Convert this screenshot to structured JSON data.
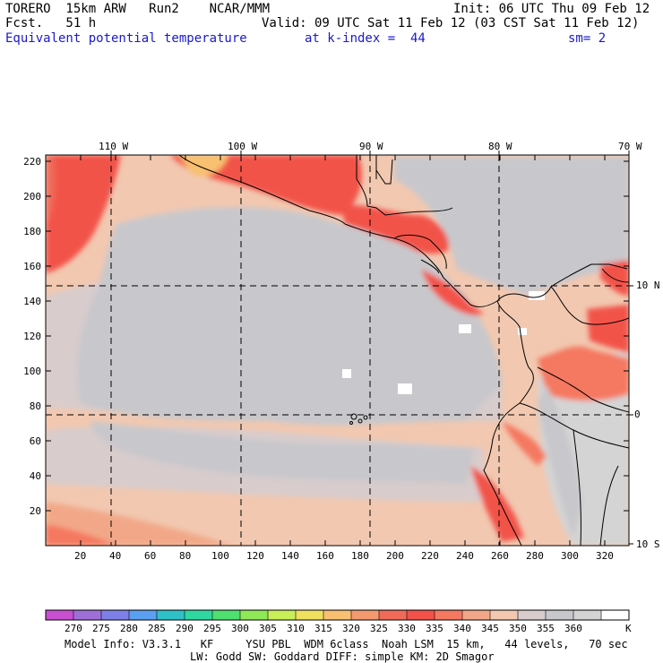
{
  "header": {
    "line1_left": "TORERO  15km ARW   Run2    NCAR/MMM",
    "line1_right": "Init: 06 UTC Thu 09 Feb 12",
    "line2_left": "Fcst.   51 h",
    "line2_right": "Valid: 09 UTC Sat 11 Feb 12 (03 CST Sat 11 Feb 12)",
    "line3_field": "Equivalent potential temperature",
    "line3_level": "at k-index =  44",
    "line3_smooth": "sm= 2"
  },
  "map": {
    "top_lon_labels": [
      "110 W",
      "100 W",
      "90 W",
      "80 W",
      "70 W"
    ],
    "right_lat_labels": [
      "10 N",
      "0",
      "10 S"
    ],
    "y_grid_labels": [
      "220",
      "200",
      "180",
      "160",
      "140",
      "120",
      "100",
      "80",
      "60",
      "40",
      "20"
    ],
    "x_grid_labels": [
      "20",
      "40",
      "60",
      "80",
      "100",
      "120",
      "140",
      "160",
      "180",
      "200",
      "220",
      "240",
      "260",
      "280",
      "300",
      "320"
    ],
    "x_range": [
      0,
      330
    ],
    "y_range": [
      0,
      225
    ],
    "land_outline_color": "#000000",
    "graticule_style": "dashed"
  },
  "colorbar": {
    "ticks": [
      "270",
      "275",
      "280",
      "285",
      "290",
      "295",
      "300",
      "305",
      "310",
      "315",
      "320",
      "325",
      "330",
      "335",
      "340",
      "345",
      "350",
      "355",
      "360"
    ],
    "unit": "K",
    "colors": [
      "#c84fcf",
      "#9f6fd8",
      "#7f7fe8",
      "#5b9ff0",
      "#30c0c8",
      "#2fd8a0",
      "#4fe070",
      "#8fe858",
      "#c8ee58",
      "#f0e060",
      "#f8c070",
      "#f59a70",
      "#f06a5a",
      "#f2524a",
      "#f57860",
      "#f2a888",
      "#f2c8b0",
      "#d8cccc",
      "#c8c8cc",
      "#d4d4d4",
      "#ffffff"
    ]
  },
  "footer": {
    "line1": "Model Info: V3.3.1   KF     YSU PBL  WDM 6class  Noah LSM  15 km,   44 levels,   70 sec",
    "line2": "LW: Godd SW: Goddard DIFF: simple KM: 2D Smagor"
  }
}
